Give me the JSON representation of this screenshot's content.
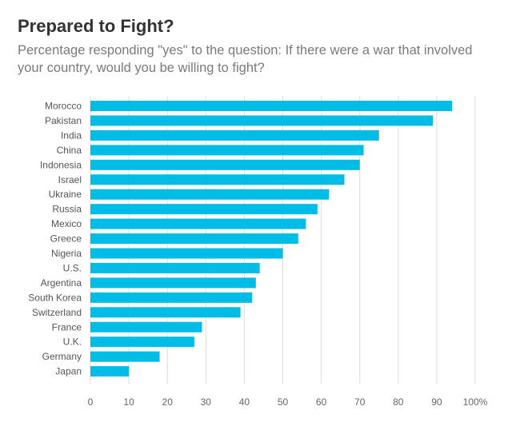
{
  "header": {
    "title": "Prepared to Fight?",
    "subtitle": "Percentage responding \"yes\" to the question: If there were a war that involved your country, would you be willing to fight?"
  },
  "colors": {
    "bar": "#00bde8",
    "title": "#333333",
    "subtitle": "#7a7a7a",
    "grid": "#dcdcdc"
  },
  "chart_data": {
    "type": "bar",
    "orientation": "horizontal",
    "title": "Prepared to Fight?",
    "xlabel": "",
    "ylabel": "",
    "xlim": [
      0,
      100
    ],
    "grid": true,
    "ticks": [
      0,
      10,
      20,
      30,
      40,
      50,
      60,
      70,
      80,
      90,
      100
    ],
    "tick_labels": [
      "0",
      "10",
      "20",
      "30",
      "40",
      "50",
      "60",
      "70",
      "80",
      "90",
      "100%"
    ],
    "categories": [
      "Morocco",
      "Pakistan",
      "India",
      "China",
      "Indonesia",
      "Israel",
      "Ukraine",
      "Russia",
      "Mexico",
      "Greece",
      "Nigeria",
      "U.S.",
      "Argentina",
      "South Korea",
      "Switzerland",
      "France",
      "U.K.",
      "Germany",
      "Japan"
    ],
    "values": [
      94,
      89,
      75,
      71,
      70,
      66,
      62,
      59,
      56,
      54,
      50,
      44,
      43,
      42,
      39,
      29,
      27,
      18,
      10
    ]
  }
}
